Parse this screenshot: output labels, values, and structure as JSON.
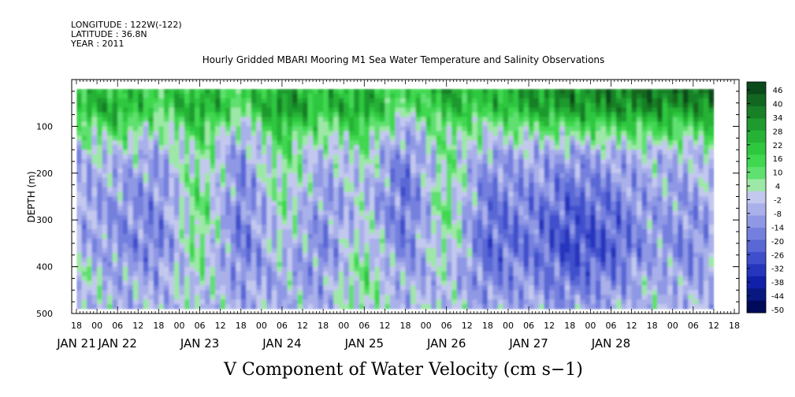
{
  "header": {
    "longitude": "LONGITUDE : 122W(-122)",
    "latitude": "LATITUDE : 36.8N",
    "year": "YEAR : 2011",
    "title": "Hourly Gridded MBARI Mooring M1 Sea Water Temperature and Salinity Observations"
  },
  "bottom_title": "V Component of Water Velocity (cm s−1)",
  "chart_data": {
    "type": "heatmap",
    "title": "Hourly Gridded MBARI Mooring M1 Sea Water Temperature and Salinity Observations",
    "xlabel": "",
    "ylabel": "DEPTH (m)",
    "colorbar_label": "V Component of Water Velocity (cm s−1)",
    "ylim": [
      500,
      0
    ],
    "y_ticks": [
      100,
      200,
      300,
      400,
      500
    ],
    "y_tick_labels": [
      "100",
      "200",
      "300",
      "400",
      "500"
    ],
    "x_start_hour": "JAN 21 18",
    "x_hour_labels": [
      "18",
      "00",
      "06",
      "12",
      "18",
      "00",
      "06",
      "12",
      "18",
      "00",
      "06",
      "12",
      "18",
      "00",
      "06",
      "12",
      "18",
      "00",
      "06",
      "12",
      "18",
      "00",
      "06",
      "12",
      "18",
      "00",
      "06",
      "12",
      "18",
      "00",
      "06",
      "12",
      "18"
    ],
    "date_labels": [
      "JAN 21",
      "JAN 22",
      "JAN 23",
      "JAN 24",
      "JAN 25",
      "JAN 26",
      "JAN 27",
      "JAN 28"
    ],
    "colorbar_levels": [
      "46",
      "40",
      "34",
      "28",
      "22",
      "16",
      "10",
      "4",
      "-2",
      "-8",
      "-14",
      "-20",
      "-26",
      "-32",
      "-38",
      "-44",
      "-50"
    ],
    "colorbar_colors": [
      "#0a4a1a",
      "#12661f",
      "#198027",
      "#1f9a2e",
      "#26b236",
      "#2ec73f",
      "#3fd84f",
      "#5fe070",
      "#9de8a6",
      "#c3c8ee",
      "#a9b0ea",
      "#8f98e4",
      "#7580de",
      "#5a68d6",
      "#3f4fcc",
      "#2536bd",
      "#1020a8",
      "#081880",
      "#000a5a"
    ],
    "value_range": [
      -50,
      46
    ],
    "data_extent_depth": [
      20,
      490
    ],
    "columns": [
      {
        "hour": 0,
        "profile": [
          [
            20,
            18
          ],
          [
            60,
            22
          ],
          [
            100,
            8
          ],
          [
            160,
            -6
          ],
          [
            260,
            -10
          ],
          [
            360,
            -6
          ],
          [
            420,
            4
          ],
          [
            490,
            -4
          ]
        ]
      },
      {
        "hour": 12,
        "profile": [
          [
            20,
            20
          ],
          [
            60,
            26
          ],
          [
            100,
            14
          ],
          [
            160,
            -4
          ],
          [
            260,
            -12
          ],
          [
            360,
            -14
          ],
          [
            420,
            -8
          ],
          [
            490,
            -6
          ]
        ]
      },
      {
        "hour": 24,
        "profile": [
          [
            20,
            16
          ],
          [
            60,
            12
          ],
          [
            100,
            2
          ],
          [
            160,
            -10
          ],
          [
            260,
            -16
          ],
          [
            360,
            -18
          ],
          [
            420,
            -10
          ],
          [
            490,
            -6
          ]
        ]
      },
      {
        "hour": 36,
        "profile": [
          [
            20,
            22
          ],
          [
            60,
            30
          ],
          [
            100,
            18
          ],
          [
            160,
            6
          ],
          [
            260,
            10
          ],
          [
            360,
            8
          ],
          [
            420,
            2
          ],
          [
            490,
            -2
          ]
        ]
      },
      {
        "hour": 48,
        "profile": [
          [
            20,
            14
          ],
          [
            60,
            10
          ],
          [
            100,
            -4
          ],
          [
            160,
            -14
          ],
          [
            260,
            -18
          ],
          [
            360,
            -20
          ],
          [
            420,
            -14
          ],
          [
            490,
            -8
          ]
        ]
      },
      {
        "hour": 60,
        "profile": [
          [
            20,
            26
          ],
          [
            60,
            34
          ],
          [
            100,
            20
          ],
          [
            160,
            8
          ],
          [
            260,
            4
          ],
          [
            360,
            -2
          ],
          [
            420,
            -8
          ],
          [
            490,
            -6
          ]
        ]
      },
      {
        "hour": 72,
        "profile": [
          [
            20,
            18
          ],
          [
            60,
            20
          ],
          [
            100,
            8
          ],
          [
            160,
            -6
          ],
          [
            260,
            -12
          ],
          [
            360,
            -16
          ],
          [
            420,
            -12
          ],
          [
            490,
            -6
          ]
        ]
      },
      {
        "hour": 84,
        "profile": [
          [
            20,
            24
          ],
          [
            60,
            30
          ],
          [
            100,
            16
          ],
          [
            160,
            2
          ],
          [
            260,
            -4
          ],
          [
            360,
            2
          ],
          [
            420,
            8
          ],
          [
            490,
            4
          ]
        ]
      },
      {
        "hour": 96,
        "profile": [
          [
            20,
            12
          ],
          [
            60,
            8
          ],
          [
            100,
            -6
          ],
          [
            160,
            -18
          ],
          [
            260,
            -22
          ],
          [
            360,
            -18
          ],
          [
            420,
            -10
          ],
          [
            490,
            -6
          ]
        ]
      },
      {
        "hour": 108,
        "profile": [
          [
            20,
            28
          ],
          [
            60,
            22
          ],
          [
            100,
            10
          ],
          [
            160,
            6
          ],
          [
            260,
            8
          ],
          [
            360,
            4
          ],
          [
            420,
            -4
          ],
          [
            490,
            -2
          ]
        ]
      },
      {
        "hour": 120,
        "profile": [
          [
            20,
            20
          ],
          [
            60,
            18
          ],
          [
            100,
            4
          ],
          [
            160,
            -10
          ],
          [
            260,
            -20
          ],
          [
            360,
            -24
          ],
          [
            420,
            -18
          ],
          [
            490,
            -10
          ]
        ]
      },
      {
        "hour": 132,
        "profile": [
          [
            20,
            30
          ],
          [
            60,
            26
          ],
          [
            100,
            10
          ],
          [
            160,
            -8
          ],
          [
            260,
            -16
          ],
          [
            360,
            -20
          ],
          [
            420,
            -14
          ],
          [
            490,
            -8
          ]
        ]
      },
      {
        "hour": 144,
        "profile": [
          [
            20,
            34
          ],
          [
            60,
            30
          ],
          [
            100,
            12
          ],
          [
            160,
            -10
          ],
          [
            260,
            -24
          ],
          [
            360,
            -30
          ],
          [
            420,
            -22
          ],
          [
            490,
            -12
          ]
        ]
      },
      {
        "hour": 156,
        "profile": [
          [
            20,
            36
          ],
          [
            60,
            32
          ],
          [
            100,
            14
          ],
          [
            160,
            -8
          ],
          [
            260,
            -20
          ],
          [
            360,
            -26
          ],
          [
            420,
            -18
          ],
          [
            490,
            -8
          ]
        ]
      },
      {
        "hour": 168,
        "profile": [
          [
            20,
            40
          ],
          [
            60,
            34
          ],
          [
            100,
            16
          ],
          [
            160,
            -4
          ],
          [
            260,
            -10
          ],
          [
            360,
            -12
          ],
          [
            420,
            -6
          ],
          [
            490,
            -4
          ]
        ]
      },
      {
        "hour": 180,
        "profile": [
          [
            20,
            38
          ],
          [
            60,
            30
          ],
          [
            100,
            12
          ],
          [
            160,
            -6
          ],
          [
            260,
            -12
          ],
          [
            360,
            -16
          ],
          [
            420,
            -12
          ],
          [
            490,
            -6
          ]
        ]
      },
      {
        "hour": 186,
        "profile": [
          [
            20,
            44
          ],
          [
            60,
            36
          ],
          [
            100,
            18
          ],
          [
            160,
            4
          ],
          [
            260,
            -6
          ],
          [
            360,
            -10
          ],
          [
            420,
            -8
          ],
          [
            490,
            -4
          ]
        ]
      }
    ]
  }
}
